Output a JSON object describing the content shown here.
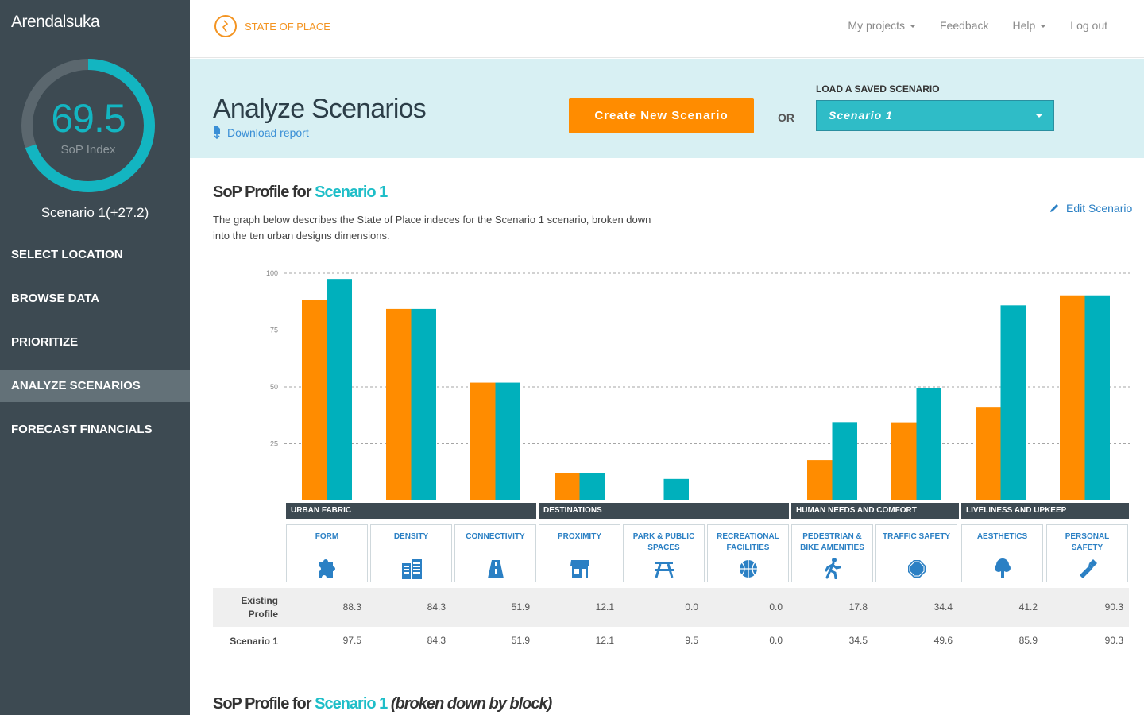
{
  "sidebar": {
    "title": "Arendalsuka",
    "gauge_value": "69.5",
    "gauge_label": "SoP Index",
    "gauge_fraction": 0.695,
    "scenario_text": "Scenario 1(+27.2)",
    "nav": [
      {
        "label": "SELECT LOCATION",
        "active": false
      },
      {
        "label": "BROWSE DATA",
        "active": false
      },
      {
        "label": "PRIORITIZE",
        "active": false
      },
      {
        "label": "ANALYZE SCENARIOS",
        "active": true
      },
      {
        "label": "FORECAST FINANCIALS",
        "active": false
      }
    ]
  },
  "topbar": {
    "brand": "STATE OF PLACE",
    "nav": [
      "My projects",
      "Feedback",
      "Help",
      "Log out"
    ]
  },
  "banner": {
    "title": "Analyze Scenarios",
    "download": "Download report",
    "create_button": "Create New Scenario",
    "or_text": "OR",
    "load_label": "LOAD A SAVED SCENARIO",
    "load_value": "Scenario 1"
  },
  "profile": {
    "title_prefix": "SoP Profile for ",
    "title_highlight": "Scenario 1",
    "description": "The graph below describes the State of Place indeces for the Scenario 1 scenario, broken down into the ten urban designs dimensions.",
    "edit_link": "Edit Scenario"
  },
  "groups": [
    "URBAN FABRIC",
    "DESTINATIONS",
    "HUMAN NEEDS AND COMFORT",
    "LIVELINESS AND UPKEEP"
  ],
  "dimensions": [
    {
      "label": "FORM",
      "icon": "puzzle-icon"
    },
    {
      "label": "DENSITY",
      "icon": "buildings-icon"
    },
    {
      "label": "CONNECTIVITY",
      "icon": "road-icon"
    },
    {
      "label": "PROXIMITY",
      "icon": "storefront-icon"
    },
    {
      "label": "PARK & PUBLIC SPACES",
      "icon": "picnic-table-icon"
    },
    {
      "label": "RECREATIONAL FACILITIES",
      "icon": "basketball-icon"
    },
    {
      "label": "PEDESTRIAN & BIKE AMENITIES",
      "icon": "walking-person-icon"
    },
    {
      "label": "TRAFFIC SAFETY",
      "icon": "stop-sign-icon"
    },
    {
      "label": "AESTHETICS",
      "icon": "tree-icon"
    },
    {
      "label": "PERSONAL SAFETY",
      "icon": "flashlight-icon"
    }
  ],
  "table": {
    "existing_label": "Existing Profile",
    "scenario_label": "Scenario 1",
    "existing_values": [
      "88.3",
      "84.3",
      "51.9",
      "12.1",
      "0.0",
      "0.0",
      "17.8",
      "34.4",
      "41.2",
      "90.3"
    ],
    "scenario_values": [
      "97.5",
      "84.3",
      "51.9",
      "12.1",
      "9.5",
      "0.0",
      "34.5",
      "49.6",
      "85.9",
      "90.3"
    ]
  },
  "section2": {
    "title_prefix": "SoP Profile for ",
    "title_highlight": "Scenario 1",
    "title_suffix": " (broken down by block)"
  },
  "colors": {
    "existing": "#ff8c00",
    "scenario": "#00b0bc",
    "accent": "#1fbec8",
    "sidebar": "#3d4a52"
  },
  "chart_data": {
    "type": "bar",
    "categories": [
      "FORM",
      "DENSITY",
      "CONNECTIVITY",
      "PROXIMITY",
      "PARK & PUBLIC SPACES",
      "RECREATIONAL FACILITIES",
      "PEDESTRIAN & BIKE AMENITIES",
      "TRAFFIC SAFETY",
      "AESTHETICS",
      "PERSONAL SAFETY"
    ],
    "series": [
      {
        "values": [
          88.3,
          84.3,
          51.9,
          12.1,
          0.0,
          0.0,
          17.8,
          34.4,
          41.2,
          90.3
        ]
      },
      {
        "values": [
          97.5,
          84.3,
          51.9,
          12.1,
          9.5,
          0.0,
          34.5,
          49.6,
          85.9,
          90.3
        ]
      }
    ],
    "yticks": [
      25,
      50,
      75,
      100
    ],
    "ylim": [
      0,
      100
    ],
    "grid": true
  }
}
